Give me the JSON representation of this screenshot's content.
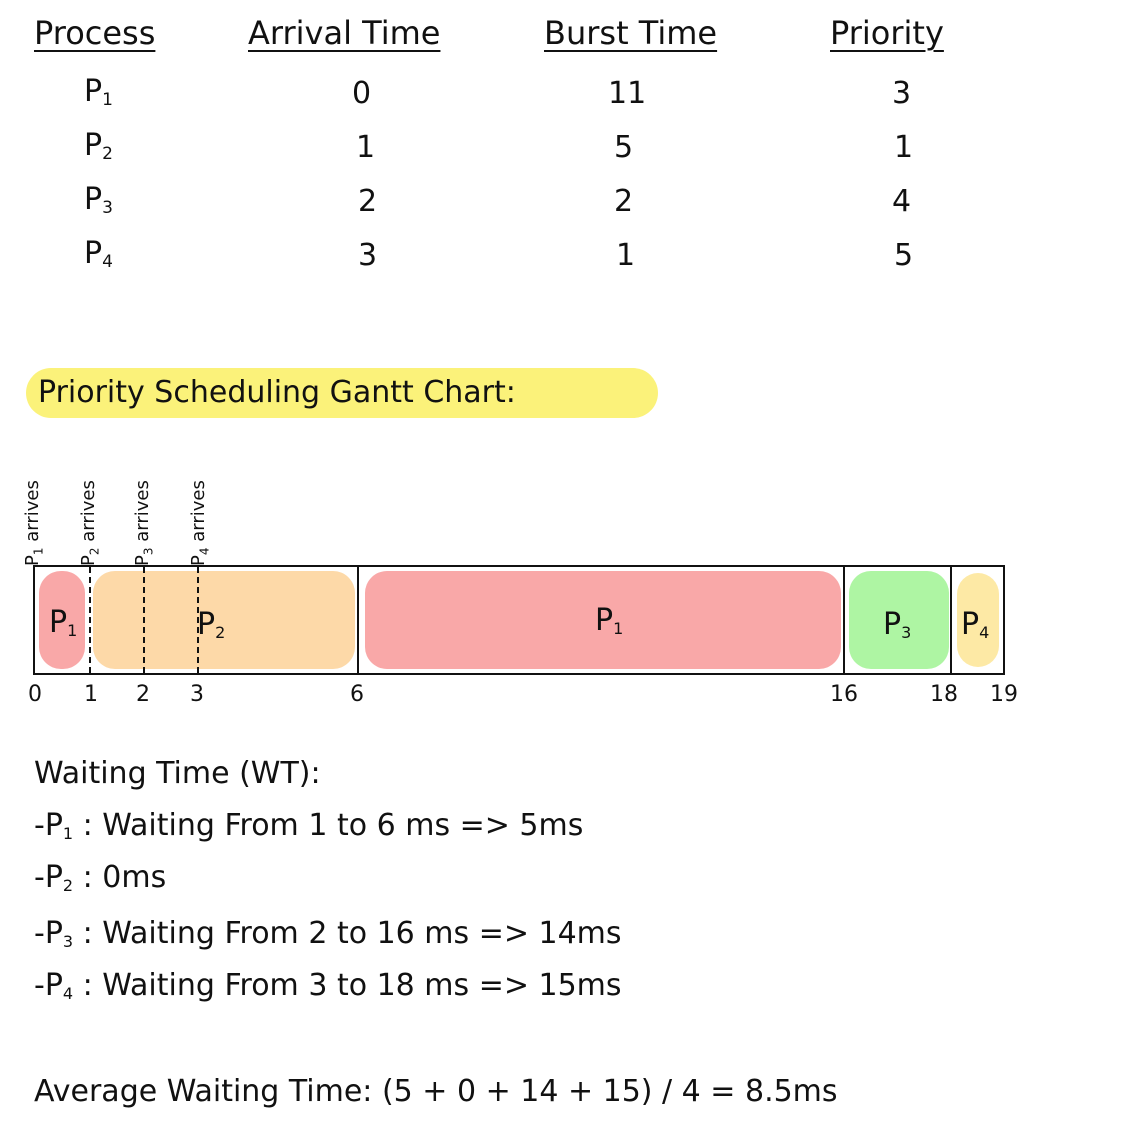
{
  "table": {
    "headers": {
      "process": "Process",
      "arrival": "Arrival Time",
      "burst": "Burst Time",
      "priority": "Priority"
    },
    "rows": [
      {
        "process": "P",
        "sub": "1",
        "arrival": "0",
        "burst": "11",
        "priority": "3"
      },
      {
        "process": "P",
        "sub": "2",
        "arrival": "1",
        "burst": "5",
        "priority": "1"
      },
      {
        "process": "P",
        "sub": "3",
        "arrival": "2",
        "burst": "2",
        "priority": "4"
      },
      {
        "process": "P",
        "sub": "4",
        "arrival": "3",
        "burst": "1",
        "priority": "5"
      }
    ]
  },
  "gantt": {
    "title": "Priority Scheduling Gantt Chart:",
    "arrivals": [
      {
        "p": "P",
        "sub": "1",
        "text": "arrives"
      },
      {
        "p": "P",
        "sub": "2",
        "text": "arrives"
      },
      {
        "p": "P",
        "sub": "3",
        "text": "arrives"
      },
      {
        "p": "P",
        "sub": "4",
        "text": "arrives"
      }
    ],
    "segments": [
      {
        "p": "P",
        "sub": "1",
        "start": 0,
        "end": 1,
        "color": "#f9a8a8"
      },
      {
        "p": "P",
        "sub": "2",
        "start": 1,
        "end": 6,
        "color": "#fdd9a8"
      },
      {
        "p": "P",
        "sub": "1",
        "start": 6,
        "end": 16,
        "color": "#f9a8a8"
      },
      {
        "p": "P",
        "sub": "3",
        "start": 16,
        "end": 18,
        "color": "#aef5a3"
      },
      {
        "p": "P",
        "sub": "4",
        "start": 18,
        "end": 19,
        "color": "#fde9a5"
      }
    ],
    "ticks": [
      "0",
      "1",
      "2",
      "3",
      "6",
      "16",
      "18",
      "19"
    ]
  },
  "waiting": {
    "heading": "Waiting Time (WT):",
    "lines": [
      {
        "prefix": "-P",
        "sub": "1",
        "text": ": Waiting From 1 to 6 ms => 5ms"
      },
      {
        "prefix": "-P",
        "sub": "2",
        "text": ": 0ms"
      },
      {
        "prefix": "-P",
        "sub": "3",
        "text": ": Waiting From 2 to 16 ms => 14ms"
      },
      {
        "prefix": "-P",
        "sub": "4",
        "text": ": Waiting From 3 to 18 ms => 15ms"
      }
    ],
    "average": "Average Waiting Time: (5 + 0 + 14 + 15) / 4 = 8.5ms"
  }
}
